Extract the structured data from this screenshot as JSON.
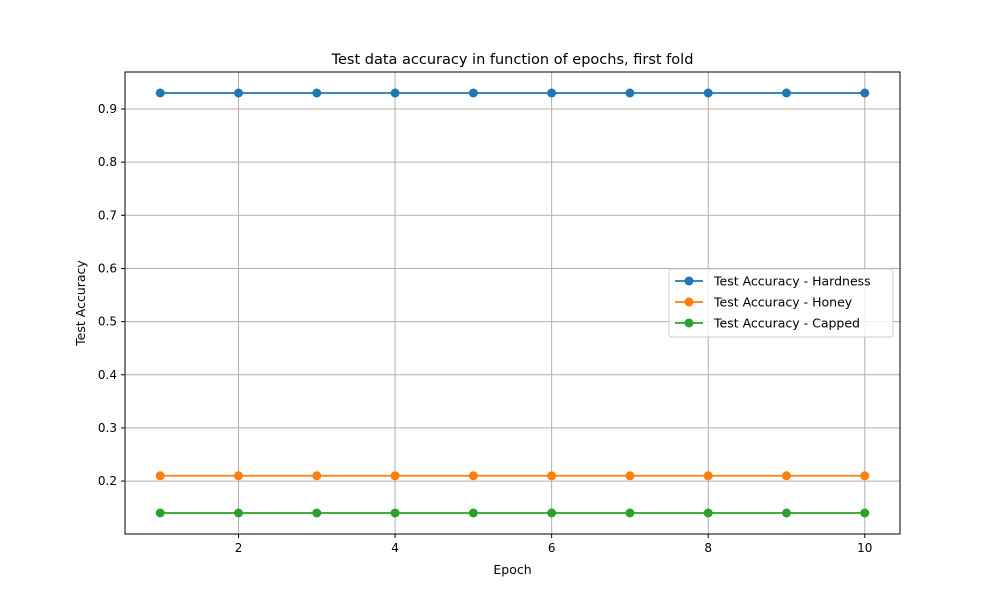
{
  "chart_data": {
    "type": "line",
    "title": "Test data accuracy in function of epochs, first fold",
    "xlabel": "Epoch",
    "ylabel": "Test Accuracy",
    "x": [
      1,
      2,
      3,
      4,
      5,
      6,
      7,
      8,
      9,
      10
    ],
    "xlim": [
      0.55,
      10.45
    ],
    "ylim": [
      0.1005,
      0.9695
    ],
    "xticks": [
      2,
      4,
      6,
      8,
      10
    ],
    "yticks": [
      0.2,
      0.3,
      0.4,
      0.5,
      0.6,
      0.7,
      0.8,
      0.9
    ],
    "xtick_labels": [
      "2",
      "4",
      "6",
      "8",
      "10"
    ],
    "ytick_labels": [
      "0.2",
      "0.3",
      "0.4",
      "0.5",
      "0.6",
      "0.7",
      "0.8",
      "0.9"
    ],
    "grid": true,
    "legend_position": "center-right",
    "series": [
      {
        "name": "Test Accuracy - Hardness",
        "color": "#1f77b4",
        "values": [
          0.93,
          0.93,
          0.93,
          0.93,
          0.93,
          0.93,
          0.93,
          0.93,
          0.93,
          0.93
        ]
      },
      {
        "name": "Test Accuracy - Honey",
        "color": "#ff7f0e",
        "values": [
          0.21,
          0.21,
          0.21,
          0.21,
          0.21,
          0.21,
          0.21,
          0.21,
          0.21,
          0.21
        ]
      },
      {
        "name": "Test Accuracy - Capped",
        "color": "#2ca02c",
        "values": [
          0.14,
          0.14,
          0.14,
          0.14,
          0.14,
          0.14,
          0.14,
          0.14,
          0.14,
          0.14
        ]
      }
    ]
  }
}
